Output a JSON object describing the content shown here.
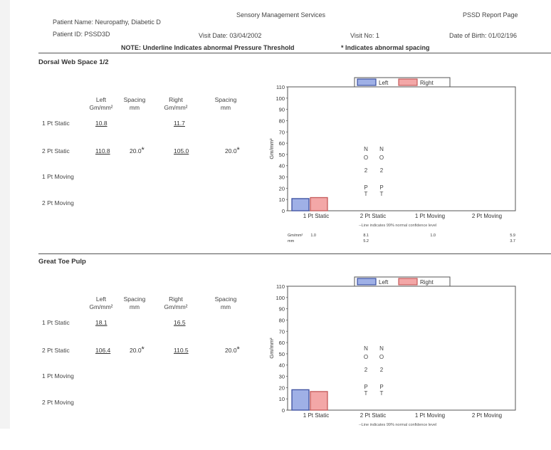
{
  "header": {
    "patient_name": "Patient Name: Neuropathy, Diabetic D",
    "service": "Sensory Management Services",
    "report_page": "PSSD Report Page",
    "patient_id": "Patient ID:  PSSD3D",
    "visit_date": "Visit Date:  03/04/2002",
    "visit_no": "Visit No:   1",
    "dob": "Date of Birth: 01/02/196",
    "note": "NOTE:  Underline Indicates abnormal Pressure Threshold",
    "spacing_note": "* Indicates abnormal spacing"
  },
  "sections": [
    {
      "title": "Dorsal Web Space 1/2",
      "columns": {
        "left": [
          "Left",
          "Gm/mm²"
        ],
        "spacing": [
          "Spacing",
          "mm"
        ],
        "right": [
          "Right",
          "Gm/mm²"
        ],
        "spacing2": [
          "Spacing",
          "mm"
        ]
      },
      "rows": [
        {
          "label": "1 Pt Static",
          "left": "10.8",
          "left_spacing": "",
          "right": "11.7",
          "right_spacing": ""
        },
        {
          "label": "2 Pt Static",
          "left": "110.8",
          "left_spacing": "20.0",
          "right": "105.0",
          "right_spacing": "20.0"
        },
        {
          "label": "1 Pt Moving",
          "left": "",
          "left_spacing": "",
          "right": "",
          "right_spacing": ""
        },
        {
          "label": "2 Pt Moving",
          "left": "",
          "left_spacing": "",
          "right": "",
          "right_spacing": ""
        }
      ],
      "chart_data": {
        "type": "bar",
        "categories": [
          "1 Pt Static",
          "2 Pt Static",
          "1 Pt Moving",
          "2 Pt Moving"
        ],
        "series": [
          {
            "name": "Left",
            "values": [
              10.8,
              null,
              null,
              null
            ]
          },
          {
            "name": "Right",
            "values": [
              11.7,
              null,
              null,
              null
            ]
          }
        ],
        "ylabel": "Gm/mm²",
        "ylim": [
          0,
          110
        ],
        "yticks": [
          "0",
          "10",
          "20",
          "30",
          "40",
          "50",
          "60",
          "70",
          "80",
          "90",
          "100",
          "110"
        ],
        "legend_position": "top-center",
        "no_pt_letters": [
          "N",
          "O",
          "2",
          "P",
          "T"
        ],
        "footnote": "--Line indicates 99% normal confidence level",
        "summary": {
          "gm_label": "Gm/mm²",
          "mm_label": "mm",
          "gm_values": [
            "1.0",
            "8.1",
            "1.0",
            "5.9"
          ],
          "mm_values": [
            "",
            "5.2",
            "",
            "3.7"
          ]
        },
        "colors": {
          "left": "#9fb0e6",
          "left_border": "#3b4fa0",
          "right": "#f3a7a7",
          "right_border": "#c45a5a"
        }
      }
    },
    {
      "title": "Great Toe Pulp",
      "columns": {
        "left": [
          "Left",
          "Gm/mm²"
        ],
        "spacing": [
          "Spacing",
          "mm"
        ],
        "right": [
          "Right",
          "Gm/mm²"
        ],
        "spacing2": [
          "Spacing",
          "mm"
        ]
      },
      "rows": [
        {
          "label": "1 Pt Static",
          "left": "18.1",
          "left_spacing": "",
          "right": "16.5",
          "right_spacing": ""
        },
        {
          "label": "2 Pt Static",
          "left": "106.4",
          "left_spacing": "20.0",
          "right": "110.5",
          "right_spacing": "20.0"
        },
        {
          "label": "1 Pt Moving",
          "left": "",
          "left_spacing": "",
          "right": "",
          "right_spacing": ""
        },
        {
          "label": "2 Pt Moving",
          "left": "",
          "left_spacing": "",
          "right": "",
          "right_spacing": ""
        }
      ],
      "chart_data": {
        "type": "bar",
        "categories": [
          "1 Pt Static",
          "2 Pt Static",
          "1 Pt Moving",
          "2 Pt Moving"
        ],
        "series": [
          {
            "name": "Left",
            "values": [
              18.1,
              null,
              null,
              null
            ]
          },
          {
            "name": "Right",
            "values": [
              16.5,
              null,
              null,
              null
            ]
          }
        ],
        "ylabel": "Gm/mm²",
        "ylim": [
          0,
          110
        ],
        "yticks": [
          "0",
          "10",
          "20",
          "30",
          "40",
          "50",
          "60",
          "70",
          "80",
          "90",
          "100",
          "110"
        ],
        "legend_position": "top-center",
        "no_pt_letters": [
          "N",
          "O",
          "2",
          "P",
          "T"
        ],
        "footnote": "--Line indicates 99% normal confidence level",
        "summary": null,
        "colors": {
          "left": "#9fb0e6",
          "left_border": "#3b4fa0",
          "right": "#f3a7a7",
          "right_border": "#c45a5a"
        }
      }
    }
  ]
}
